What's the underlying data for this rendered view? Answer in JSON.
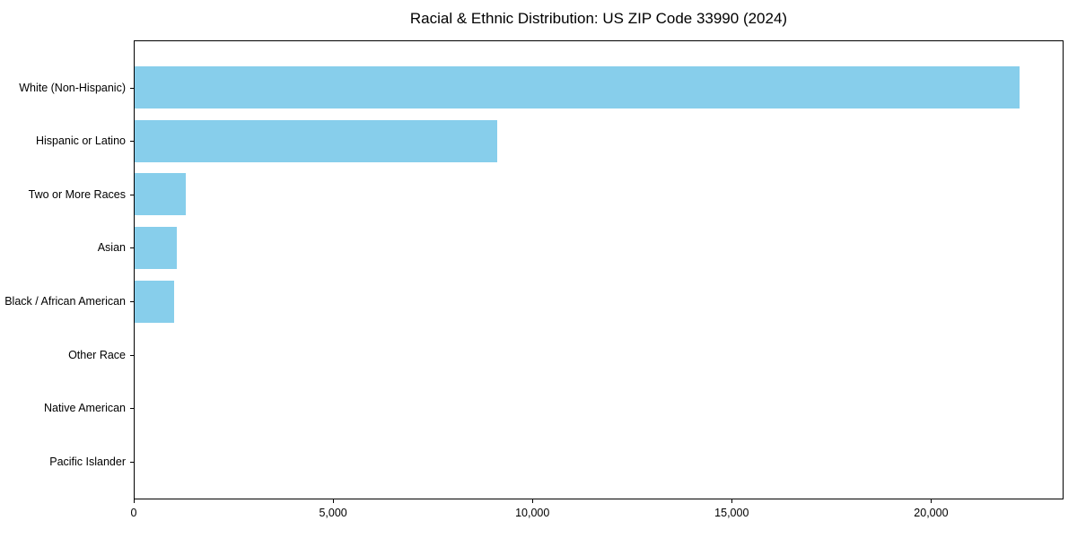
{
  "chart_data": {
    "type": "bar",
    "orientation": "horizontal",
    "title": "Racial & Ethnic Distribution: US ZIP Code 33990 (2024)",
    "categories": [
      "White (Non-Hispanic)",
      "Hispanic or Latino",
      "Two or More Races",
      "Asian",
      "Black / African American",
      "Other Race",
      "Native American",
      "Pacific Islander"
    ],
    "values": [
      22200,
      9100,
      1280,
      1060,
      990,
      0,
      0,
      0
    ],
    "xlabel": "",
    "ylabel": "",
    "xlim": [
      0,
      23300
    ],
    "x_ticks": [
      0,
      5000,
      10000,
      15000,
      20000
    ],
    "x_tick_labels": [
      "0",
      "5,000",
      "10,000",
      "15,000",
      "20,000"
    ],
    "bar_color": "#87CEEB",
    "background_color": "#ffffff",
    "spine_color": "#000000",
    "grid": false,
    "legend": null
  }
}
